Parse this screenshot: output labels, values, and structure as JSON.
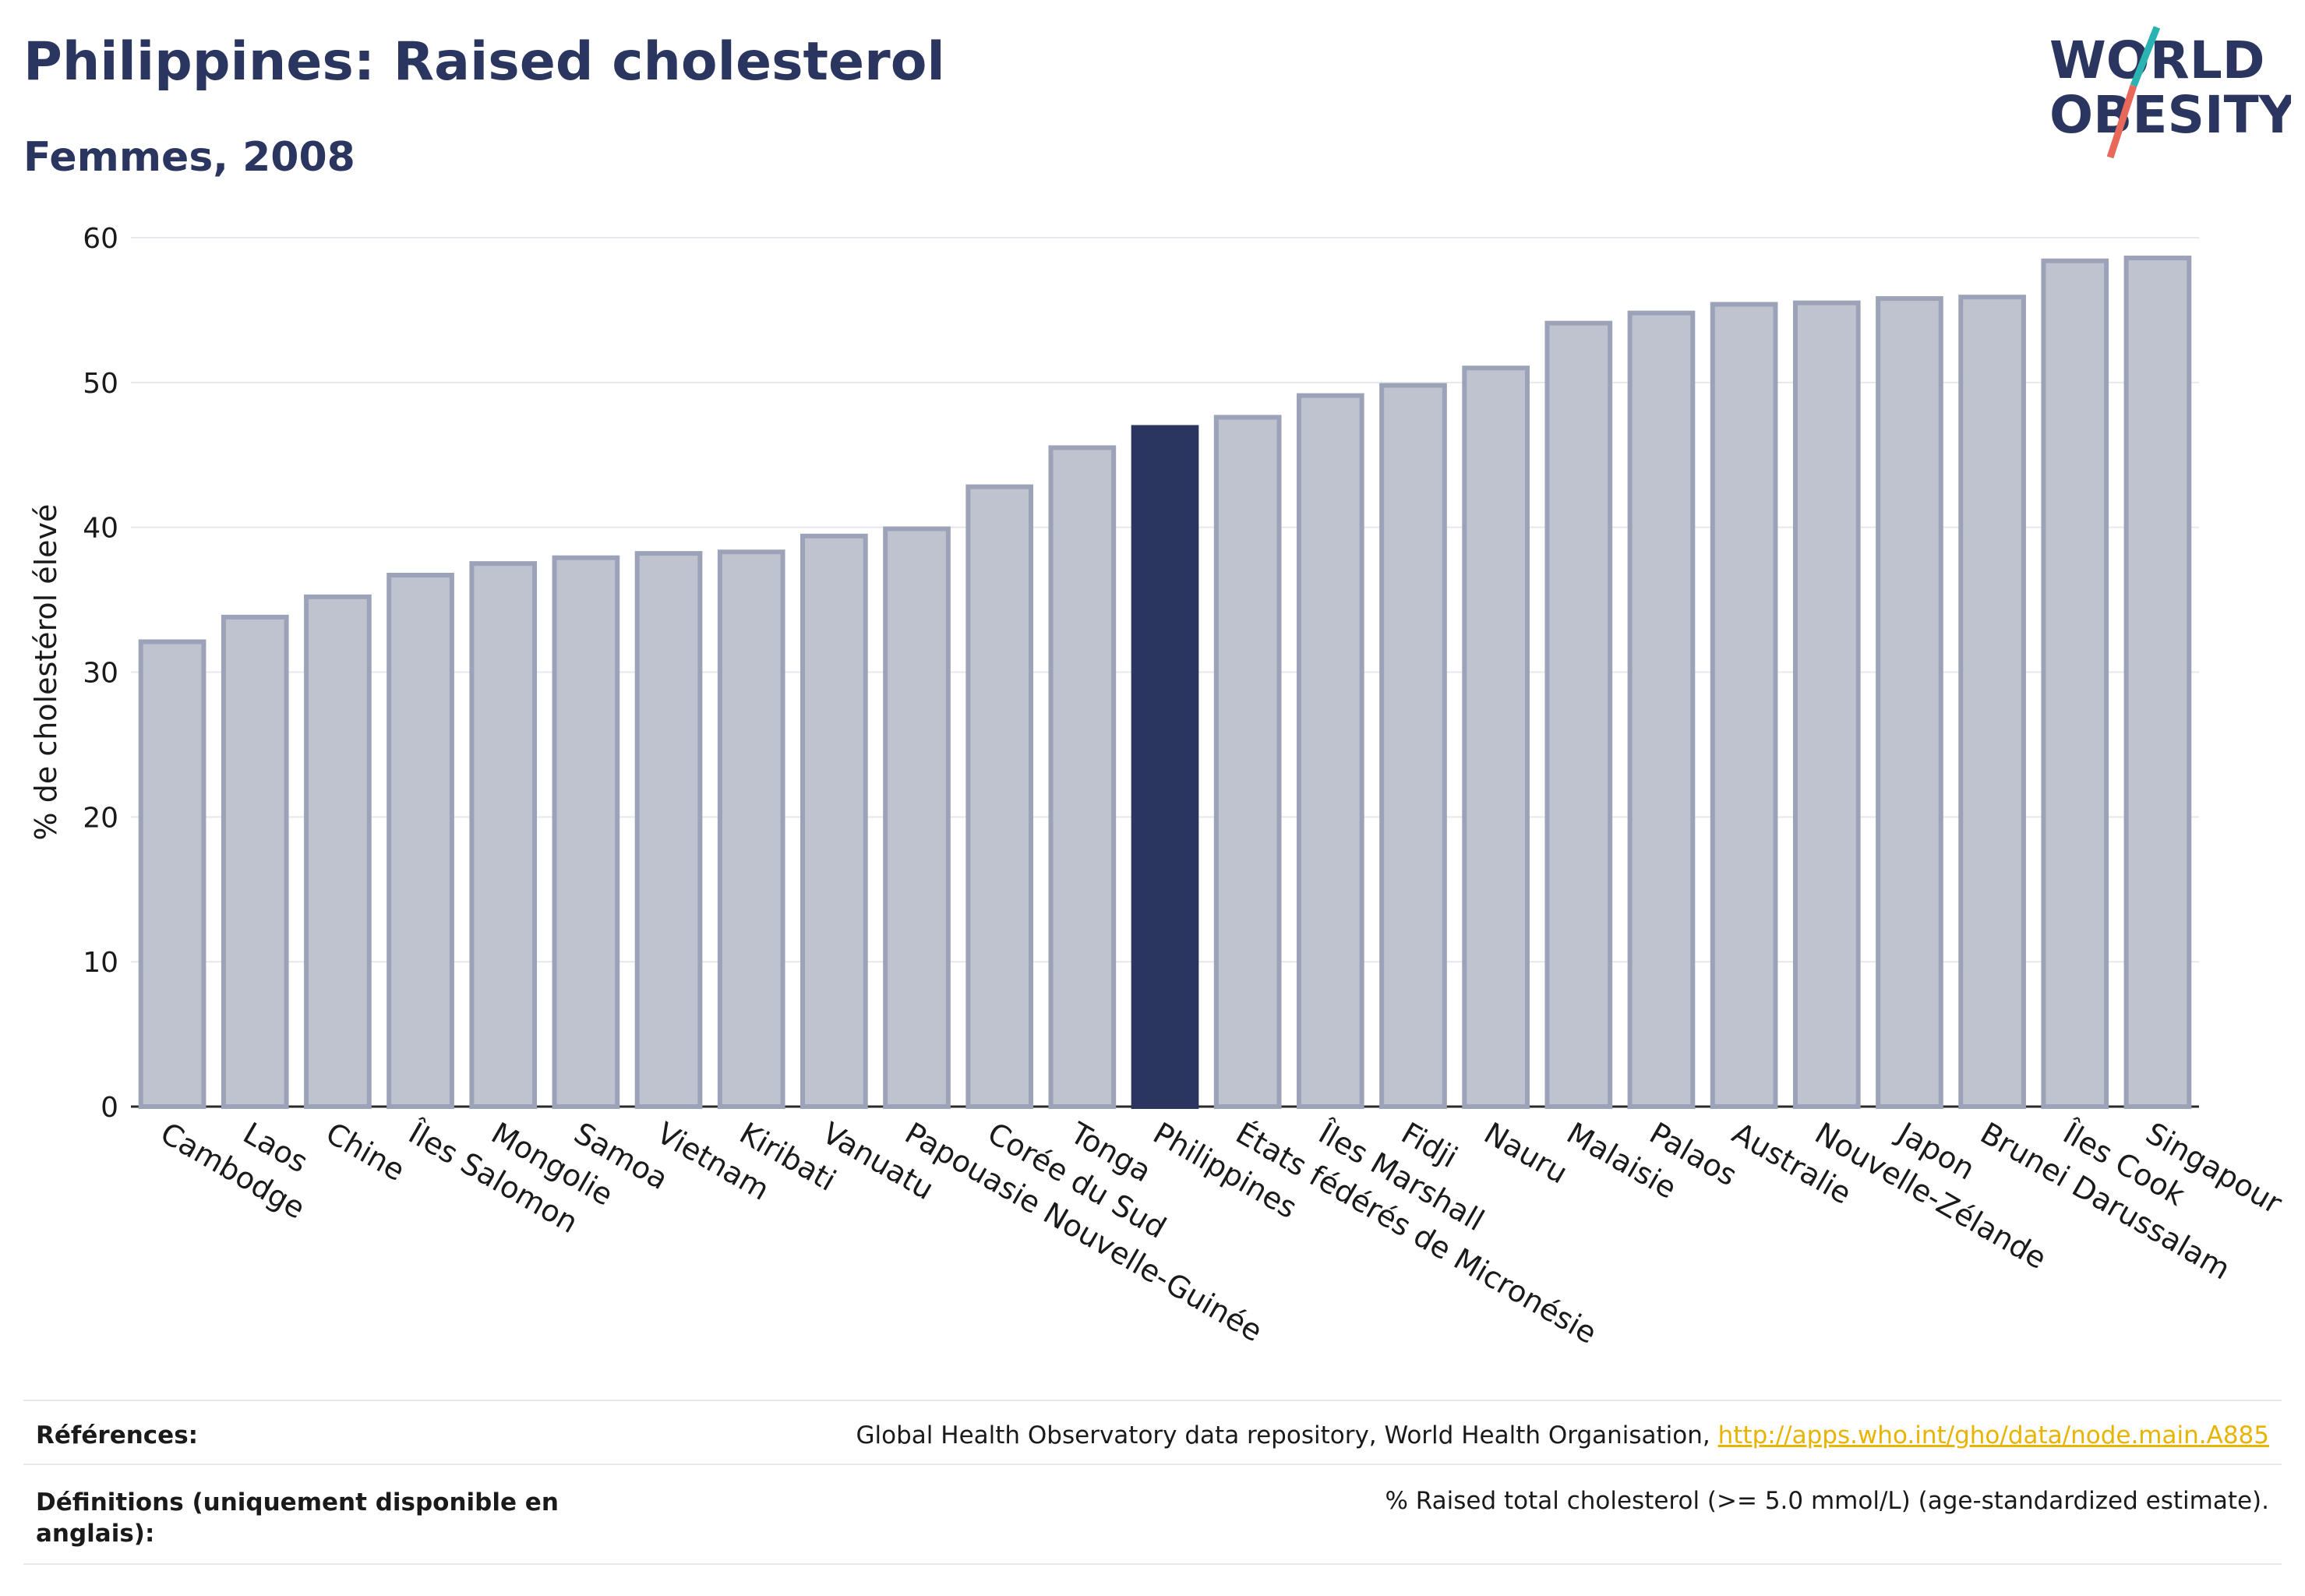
{
  "header": {
    "title": "Philippines: Raised cholesterol",
    "subtitle": "Femmes, 2008"
  },
  "logo": {
    "line1": "WORLD",
    "line2": "OBESITY"
  },
  "chart_data": {
    "type": "bar",
    "ylabel": "% de cholestérol élevé",
    "ylim": [
      0,
      60
    ],
    "yticks": [
      0,
      10,
      20,
      30,
      40,
      50,
      60
    ],
    "grid": true,
    "highlight": "Philippines",
    "colors": {
      "bar": "#bfc3d0",
      "bar_border": "#9ca3b8",
      "highlight": "#2a3560",
      "grid": "#e6e8ee"
    },
    "categories": [
      "Cambodge",
      "Laos",
      "Chine",
      "Îles Salomon",
      "Mongolie",
      "Samoa",
      "Vietnam",
      "Kiribati",
      "Vanuatu",
      "Papouasie Nouvelle-Guinée",
      "Corée du Sud",
      "Tonga",
      "Philippines",
      "États fédérés de Micronésie",
      "Îles Marshall",
      "Fidji",
      "Nauru",
      "Malaisie",
      "Palaos",
      "Australie",
      "Nouvelle-Zélande",
      "Japon",
      "Brunei Darussalam",
      "Îles Cook",
      "Singapour"
    ],
    "values": [
      32.1,
      33.8,
      35.2,
      36.7,
      37.5,
      37.9,
      38.2,
      38.3,
      39.4,
      39.9,
      42.8,
      45.5,
      46.9,
      47.6,
      49.1,
      49.8,
      51.0,
      54.1,
      54.8,
      55.4,
      55.5,
      55.8,
      55.9,
      58.4,
      58.6
    ]
  },
  "footer": {
    "references_label": "Références:",
    "references_text": "Global Health Observatory data repository, World Health Organisation, ",
    "references_link": "http://apps.who.int/gho/data/node.main.A885",
    "definitions_label": "Définitions (uniquement disponible en anglais):",
    "definitions_text": "% Raised total cholesterol (>= 5.0 mmol/L) (age-standardized estimate)."
  }
}
